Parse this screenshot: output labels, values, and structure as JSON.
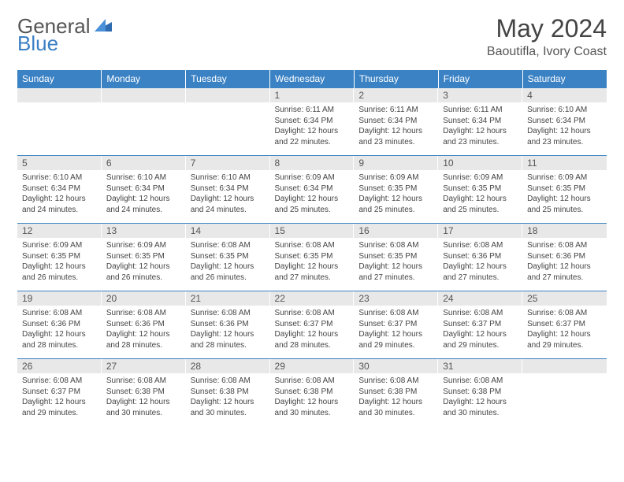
{
  "logo": {
    "general": "General",
    "blue": "Blue"
  },
  "title": "May 2024",
  "location": "Baoutifla, Ivory Coast",
  "header_bg": "#3b82c4",
  "header_fg": "#ffffff",
  "daynum_bg": "#e8e8e8",
  "border_color": "#3b82c4",
  "days_of_week": [
    "Sunday",
    "Monday",
    "Tuesday",
    "Wednesday",
    "Thursday",
    "Friday",
    "Saturday"
  ],
  "weeks": [
    [
      {
        "num": "",
        "sunrise": "",
        "sunset": "",
        "daylight": ""
      },
      {
        "num": "",
        "sunrise": "",
        "sunset": "",
        "daylight": ""
      },
      {
        "num": "",
        "sunrise": "",
        "sunset": "",
        "daylight": ""
      },
      {
        "num": "1",
        "sunrise": "Sunrise: 6:11 AM",
        "sunset": "Sunset: 6:34 PM",
        "daylight": "Daylight: 12 hours and 22 minutes."
      },
      {
        "num": "2",
        "sunrise": "Sunrise: 6:11 AM",
        "sunset": "Sunset: 6:34 PM",
        "daylight": "Daylight: 12 hours and 23 minutes."
      },
      {
        "num": "3",
        "sunrise": "Sunrise: 6:11 AM",
        "sunset": "Sunset: 6:34 PM",
        "daylight": "Daylight: 12 hours and 23 minutes."
      },
      {
        "num": "4",
        "sunrise": "Sunrise: 6:10 AM",
        "sunset": "Sunset: 6:34 PM",
        "daylight": "Daylight: 12 hours and 23 minutes."
      }
    ],
    [
      {
        "num": "5",
        "sunrise": "Sunrise: 6:10 AM",
        "sunset": "Sunset: 6:34 PM",
        "daylight": "Daylight: 12 hours and 24 minutes."
      },
      {
        "num": "6",
        "sunrise": "Sunrise: 6:10 AM",
        "sunset": "Sunset: 6:34 PM",
        "daylight": "Daylight: 12 hours and 24 minutes."
      },
      {
        "num": "7",
        "sunrise": "Sunrise: 6:10 AM",
        "sunset": "Sunset: 6:34 PM",
        "daylight": "Daylight: 12 hours and 24 minutes."
      },
      {
        "num": "8",
        "sunrise": "Sunrise: 6:09 AM",
        "sunset": "Sunset: 6:34 PM",
        "daylight": "Daylight: 12 hours and 25 minutes."
      },
      {
        "num": "9",
        "sunrise": "Sunrise: 6:09 AM",
        "sunset": "Sunset: 6:35 PM",
        "daylight": "Daylight: 12 hours and 25 minutes."
      },
      {
        "num": "10",
        "sunrise": "Sunrise: 6:09 AM",
        "sunset": "Sunset: 6:35 PM",
        "daylight": "Daylight: 12 hours and 25 minutes."
      },
      {
        "num": "11",
        "sunrise": "Sunrise: 6:09 AM",
        "sunset": "Sunset: 6:35 PM",
        "daylight": "Daylight: 12 hours and 25 minutes."
      }
    ],
    [
      {
        "num": "12",
        "sunrise": "Sunrise: 6:09 AM",
        "sunset": "Sunset: 6:35 PM",
        "daylight": "Daylight: 12 hours and 26 minutes."
      },
      {
        "num": "13",
        "sunrise": "Sunrise: 6:09 AM",
        "sunset": "Sunset: 6:35 PM",
        "daylight": "Daylight: 12 hours and 26 minutes."
      },
      {
        "num": "14",
        "sunrise": "Sunrise: 6:08 AM",
        "sunset": "Sunset: 6:35 PM",
        "daylight": "Daylight: 12 hours and 26 minutes."
      },
      {
        "num": "15",
        "sunrise": "Sunrise: 6:08 AM",
        "sunset": "Sunset: 6:35 PM",
        "daylight": "Daylight: 12 hours and 27 minutes."
      },
      {
        "num": "16",
        "sunrise": "Sunrise: 6:08 AM",
        "sunset": "Sunset: 6:35 PM",
        "daylight": "Daylight: 12 hours and 27 minutes."
      },
      {
        "num": "17",
        "sunrise": "Sunrise: 6:08 AM",
        "sunset": "Sunset: 6:36 PM",
        "daylight": "Daylight: 12 hours and 27 minutes."
      },
      {
        "num": "18",
        "sunrise": "Sunrise: 6:08 AM",
        "sunset": "Sunset: 6:36 PM",
        "daylight": "Daylight: 12 hours and 27 minutes."
      }
    ],
    [
      {
        "num": "19",
        "sunrise": "Sunrise: 6:08 AM",
        "sunset": "Sunset: 6:36 PM",
        "daylight": "Daylight: 12 hours and 28 minutes."
      },
      {
        "num": "20",
        "sunrise": "Sunrise: 6:08 AM",
        "sunset": "Sunset: 6:36 PM",
        "daylight": "Daylight: 12 hours and 28 minutes."
      },
      {
        "num": "21",
        "sunrise": "Sunrise: 6:08 AM",
        "sunset": "Sunset: 6:36 PM",
        "daylight": "Daylight: 12 hours and 28 minutes."
      },
      {
        "num": "22",
        "sunrise": "Sunrise: 6:08 AM",
        "sunset": "Sunset: 6:37 PM",
        "daylight": "Daylight: 12 hours and 28 minutes."
      },
      {
        "num": "23",
        "sunrise": "Sunrise: 6:08 AM",
        "sunset": "Sunset: 6:37 PM",
        "daylight": "Daylight: 12 hours and 29 minutes."
      },
      {
        "num": "24",
        "sunrise": "Sunrise: 6:08 AM",
        "sunset": "Sunset: 6:37 PM",
        "daylight": "Daylight: 12 hours and 29 minutes."
      },
      {
        "num": "25",
        "sunrise": "Sunrise: 6:08 AM",
        "sunset": "Sunset: 6:37 PM",
        "daylight": "Daylight: 12 hours and 29 minutes."
      }
    ],
    [
      {
        "num": "26",
        "sunrise": "Sunrise: 6:08 AM",
        "sunset": "Sunset: 6:37 PM",
        "daylight": "Daylight: 12 hours and 29 minutes."
      },
      {
        "num": "27",
        "sunrise": "Sunrise: 6:08 AM",
        "sunset": "Sunset: 6:38 PM",
        "daylight": "Daylight: 12 hours and 30 minutes."
      },
      {
        "num": "28",
        "sunrise": "Sunrise: 6:08 AM",
        "sunset": "Sunset: 6:38 PM",
        "daylight": "Daylight: 12 hours and 30 minutes."
      },
      {
        "num": "29",
        "sunrise": "Sunrise: 6:08 AM",
        "sunset": "Sunset: 6:38 PM",
        "daylight": "Daylight: 12 hours and 30 minutes."
      },
      {
        "num": "30",
        "sunrise": "Sunrise: 6:08 AM",
        "sunset": "Sunset: 6:38 PM",
        "daylight": "Daylight: 12 hours and 30 minutes."
      },
      {
        "num": "31",
        "sunrise": "Sunrise: 6:08 AM",
        "sunset": "Sunset: 6:38 PM",
        "daylight": "Daylight: 12 hours and 30 minutes."
      },
      {
        "num": "",
        "sunrise": "",
        "sunset": "",
        "daylight": ""
      }
    ]
  ]
}
